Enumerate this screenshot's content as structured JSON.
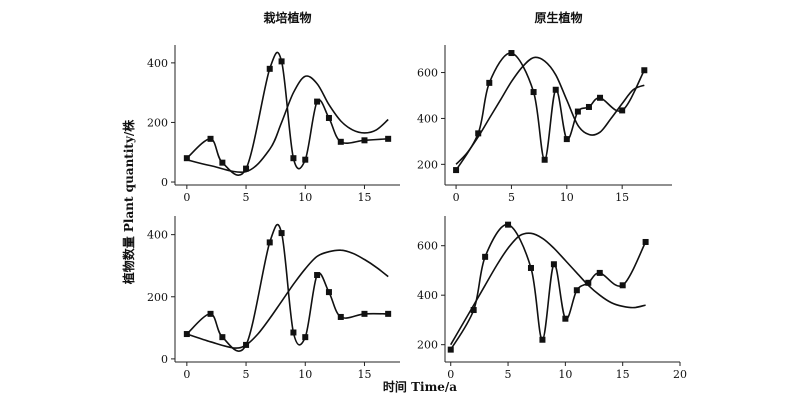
{
  "figure": {
    "ylabel": "植物数量 Plant quantity/株",
    "xlabel": "时间 Time/a"
  },
  "chart_data": [
    {
      "type": "line",
      "title": "栽培植物",
      "xlim": [
        -1,
        18
      ],
      "ylim": [
        -10,
        460
      ],
      "xticks": [
        0,
        5,
        10,
        15
      ],
      "yticks": [
        0,
        200,
        400
      ],
      "series": [
        {
          "x": [
            0,
            2,
            3,
            5,
            7,
            8,
            9,
            10,
            11,
            12,
            13,
            15,
            17
          ],
          "y": [
            80,
            145,
            65,
            45,
            380,
            405,
            80,
            75,
            270,
            215,
            135,
            140,
            145
          ]
        },
        {
          "x": [
            0,
            2,
            5,
            7,
            8,
            9,
            10,
            11,
            12,
            13,
            14,
            15,
            16,
            17
          ],
          "y": [
            75,
            55,
            35,
            110,
            200,
            300,
            355,
            330,
            260,
            205,
            175,
            165,
            175,
            210
          ]
        }
      ]
    },
    {
      "type": "line",
      "title": "原生植物",
      "xlim": [
        -1,
        19.5
      ],
      "ylim": [
        110,
        720
      ],
      "xticks": [
        0,
        5,
        10,
        15
      ],
      "yticks": [
        200,
        400,
        600
      ],
      "series": [
        {
          "x": [
            0,
            2,
            3,
            5,
            7,
            8,
            9,
            10,
            11,
            12,
            13,
            15,
            17
          ],
          "y": [
            175,
            335,
            555,
            685,
            515,
            220,
            525,
            310,
            430,
            450,
            490,
            435,
            610
          ]
        },
        {
          "x": [
            0,
            1,
            2,
            3,
            4,
            5,
            6,
            7,
            8,
            9,
            10,
            11,
            12,
            13,
            14,
            15,
            16,
            17
          ],
          "y": [
            200,
            250,
            320,
            400,
            480,
            560,
            625,
            665,
            650,
            590,
            480,
            370,
            330,
            340,
            400,
            465,
            525,
            545
          ]
        }
      ]
    },
    {
      "type": "line",
      "title": "",
      "xlim": [
        -1,
        18
      ],
      "ylim": [
        -10,
        460
      ],
      "xticks": [
        0,
        5,
        10,
        15
      ],
      "yticks": [
        0,
        200,
        400
      ],
      "series": [
        {
          "x": [
            0,
            2,
            3,
            5,
            7,
            8,
            9,
            10,
            11,
            12,
            13,
            15,
            17
          ],
          "y": [
            80,
            145,
            70,
            45,
            375,
            405,
            85,
            70,
            270,
            215,
            135,
            145,
            145
          ]
        },
        {
          "x": [
            0,
            2,
            4,
            5,
            6,
            7,
            8,
            9,
            10,
            11,
            12,
            13,
            14,
            15,
            16,
            17
          ],
          "y": [
            80,
            55,
            35,
            45,
            80,
            130,
            185,
            240,
            290,
            330,
            345,
            350,
            340,
            320,
            295,
            265
          ]
        }
      ]
    },
    {
      "type": "line",
      "title": "",
      "xlim": [
        -0.5,
        20
      ],
      "ylim": [
        130,
        720
      ],
      "xticks": [
        0,
        5,
        10,
        15,
        20
      ],
      "yticks": [
        200,
        400,
        600
      ],
      "series": [
        {
          "x": [
            0,
            2,
            3,
            5,
            7,
            8,
            9,
            10,
            11,
            12,
            13,
            15,
            17
          ],
          "y": [
            180,
            340,
            555,
            685,
            510,
            220,
            525,
            305,
            420,
            450,
            490,
            440,
            615
          ]
        },
        {
          "x": [
            0,
            1,
            2,
            3,
            4,
            5,
            6,
            7,
            8,
            9,
            10,
            11,
            12,
            13,
            14,
            15,
            16,
            17
          ],
          "y": [
            200,
            280,
            360,
            440,
            520,
            590,
            640,
            650,
            630,
            590,
            540,
            490,
            440,
            400,
            370,
            355,
            350,
            360
          ]
        }
      ]
    }
  ]
}
